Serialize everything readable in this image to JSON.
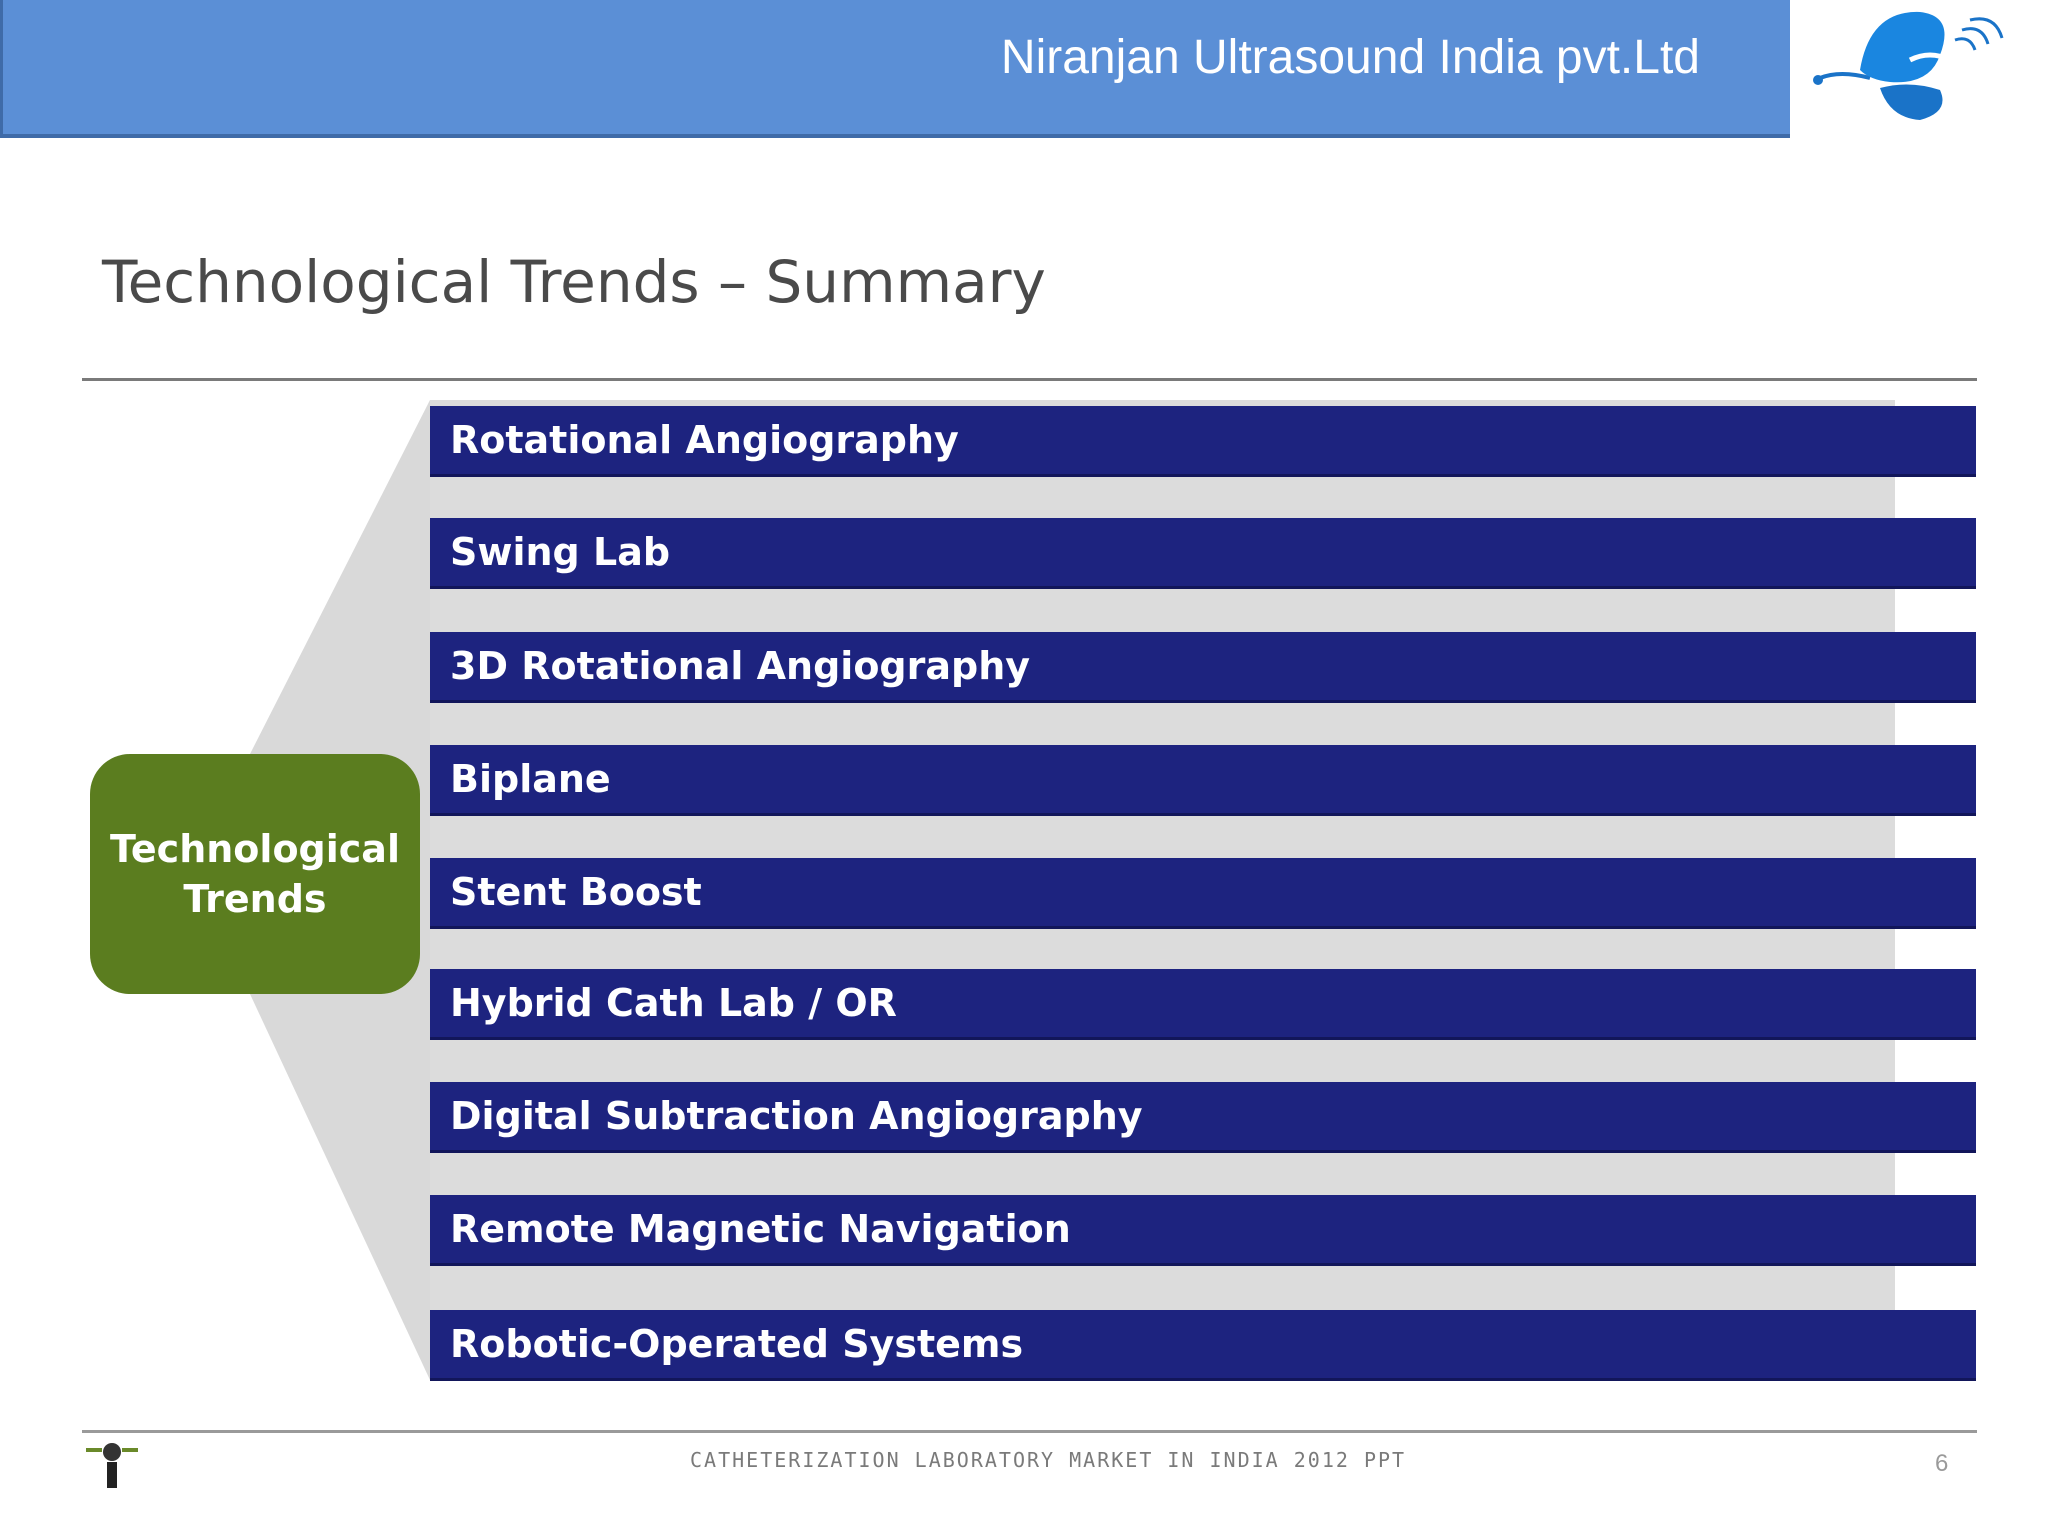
{
  "header": {
    "company_name": "Niranjan Ultrasound India pvt.Ltd",
    "logo": "butterfly-swirl-logo",
    "bar_color": "#5b8fd6"
  },
  "slide": {
    "title": "Technological Trends – Summary",
    "hub": {
      "label": "Technological Trends",
      "color": "#5b7d1f"
    },
    "trends_color": "#1d237f",
    "trends": [
      "Rotational Angiography",
      "Swing Lab",
      "3D Rotational Angiography",
      "Biplane",
      "Stent Boost",
      "Hybrid Cath Lab / OR",
      "Digital Subtraction Angiography",
      "Remote Magnetic Navigation",
      "Robotic-Operated Systems"
    ]
  },
  "footer": {
    "text": "CATHETERIZATION LABORATORY MARKET IN INDIA 2012 PPT",
    "page_number": "6",
    "icon": "small-logo-icon"
  }
}
